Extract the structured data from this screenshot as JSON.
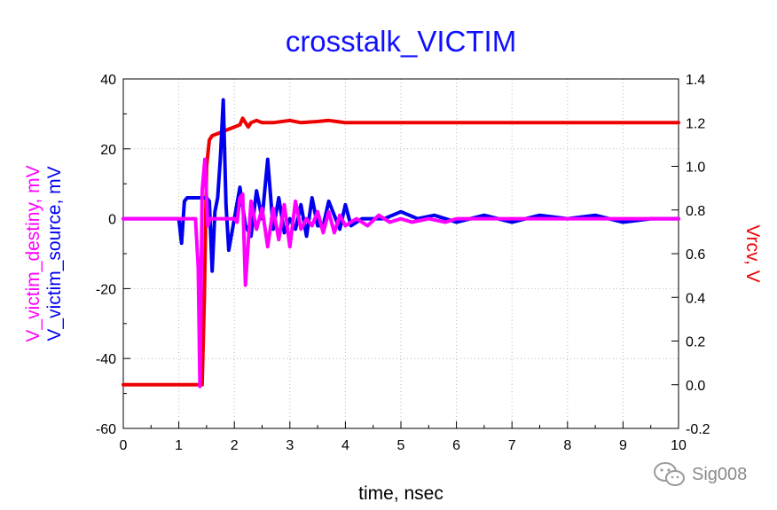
{
  "watermark": {
    "text": "Sig008",
    "icon": "wechat-logo-icon"
  },
  "chart_data": {
    "type": "line",
    "title": "crosstalk_VICTIM",
    "xlabel": "time, nsec",
    "ylabel_left": [
      "V_victim_destiny, mV",
      "V_victim_source, mV"
    ],
    "ylabel_right": "Vrcv, V",
    "xlim": [
      0,
      10
    ],
    "ylim_left": [
      -60,
      40
    ],
    "ylim_right": [
      -0.2,
      1.4
    ],
    "x_ticks": [
      "0",
      "1",
      "2",
      "3",
      "4",
      "5",
      "6",
      "7",
      "8",
      "9",
      "10"
    ],
    "y_ticks_left": [
      "-60",
      "-40",
      "-20",
      "0",
      "20",
      "40"
    ],
    "y_ticks_right": [
      "-0.2",
      "0.0",
      "0.2",
      "0.4",
      "0.6",
      "0.8",
      "1.0",
      "1.2",
      "1.4"
    ],
    "grid": true,
    "colors": {
      "title": "#1010ff",
      "source": "#0000ee",
      "destiny": "#ff00ff",
      "rcv": "#ee0000"
    },
    "series": [
      {
        "name": "Vrcv",
        "axis": "right",
        "color": "#ee0000",
        "x": [
          0,
          1.0,
          1.35,
          1.42,
          1.46,
          1.5,
          1.55,
          1.6,
          1.7,
          1.8,
          1.9,
          2.0,
          2.1,
          2.15,
          2.2,
          2.25,
          2.3,
          2.4,
          2.5,
          2.7,
          3.0,
          3.2,
          3.5,
          3.7,
          4.0,
          4.5,
          5.0,
          5.5,
          6.0,
          7.0,
          8.0,
          9.0,
          10.0
        ],
        "y": [
          0.0,
          0.0,
          0.0,
          0.0,
          0.4,
          1.0,
          1.12,
          1.14,
          1.15,
          1.16,
          1.17,
          1.18,
          1.19,
          1.22,
          1.2,
          1.18,
          1.2,
          1.21,
          1.2,
          1.2,
          1.21,
          1.2,
          1.205,
          1.21,
          1.2,
          1.2,
          1.2,
          1.2,
          1.2,
          1.2,
          1.2,
          1.2,
          1.2
        ]
      },
      {
        "name": "V_victim_source",
        "axis": "left",
        "color": "#0000ee",
        "x": [
          0,
          1.0,
          1.05,
          1.1,
          1.15,
          1.2,
          1.3,
          1.4,
          1.45,
          1.5,
          1.55,
          1.6,
          1.65,
          1.7,
          1.75,
          1.8,
          1.85,
          1.9,
          2.0,
          2.1,
          2.2,
          2.3,
          2.4,
          2.5,
          2.6,
          2.7,
          2.8,
          2.9,
          3.0,
          3.1,
          3.2,
          3.3,
          3.4,
          3.5,
          3.6,
          3.7,
          3.8,
          3.9,
          4.0,
          4.1,
          4.3,
          4.5,
          4.7,
          5.0,
          5.3,
          5.6,
          6.0,
          6.5,
          7.0,
          7.5,
          8.0,
          8.5,
          9.0,
          9.5,
          10.0
        ],
        "y": [
          0,
          0,
          -7,
          5,
          6,
          6,
          6,
          6,
          6,
          6,
          5,
          -15,
          2,
          6,
          18,
          34,
          4,
          -9,
          0,
          9,
          -2,
          -5,
          8,
          0,
          17,
          -3,
          6,
          -4,
          0,
          -3,
          4,
          -5,
          6,
          -2,
          -2,
          5,
          1,
          -3,
          4,
          -2,
          0,
          0,
          0,
          2,
          0,
          1,
          -1,
          1,
          -1,
          1,
          0,
          1,
          -1,
          0,
          0
        ]
      },
      {
        "name": "V_victim_destiny",
        "axis": "left",
        "color": "#ff00ff",
        "x": [
          0,
          1.2,
          1.3,
          1.35,
          1.38,
          1.42,
          1.47,
          1.52,
          1.56,
          1.6,
          1.7,
          1.8,
          1.9,
          2.0,
          2.05,
          2.1,
          2.15,
          2.2,
          2.3,
          2.4,
          2.5,
          2.6,
          2.7,
          2.8,
          2.9,
          3.0,
          3.1,
          3.2,
          3.3,
          3.4,
          3.5,
          3.6,
          3.7,
          3.8,
          3.9,
          4.0,
          4.2,
          4.4,
          4.6,
          4.8,
          5.0,
          5.2,
          5.5,
          5.8,
          6.0,
          6.5,
          7.0,
          7.5,
          8.0,
          8.5,
          9.0,
          9.5,
          10.0
        ],
        "y": [
          0,
          0,
          0,
          -14,
          -48,
          8,
          17,
          -2,
          0,
          0,
          0,
          0,
          0,
          0,
          -1,
          6,
          7,
          -19,
          5,
          -3,
          3,
          -8,
          3,
          -6,
          4,
          -8,
          5,
          -3,
          0,
          -2,
          2,
          -4,
          2,
          -4,
          1,
          -2,
          0,
          -2,
          1,
          -1,
          0,
          -1,
          0,
          -1,
          0,
          0,
          0,
          0,
          0,
          0,
          0,
          0,
          0
        ]
      }
    ]
  }
}
